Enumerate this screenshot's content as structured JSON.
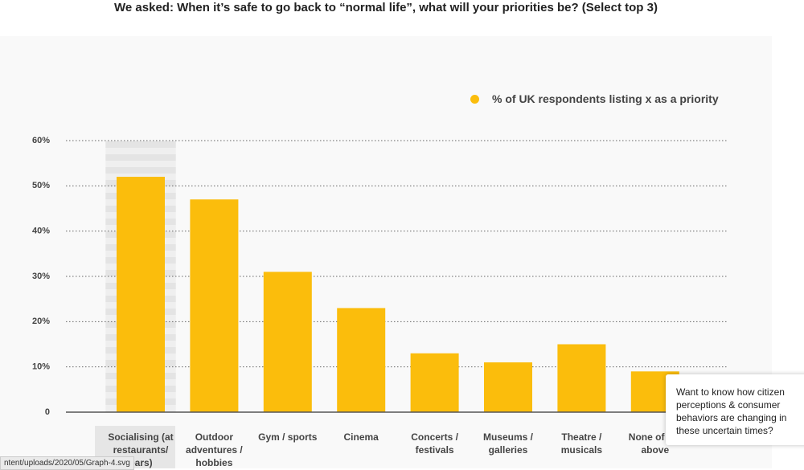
{
  "chart_data": {
    "type": "bar",
    "title": "We asked: When it’s safe to go back to “normal life”, what will your priorities be? (Select top 3)",
    "categories": [
      "Socialising (at restaurants/ bars)",
      "Outdoor adventures / hobbies",
      "Gym / sports",
      "Cinema",
      "Concerts / festivals",
      "Museums / galleries",
      "Theatre / musicals",
      "None of the above"
    ],
    "series": [
      {
        "name": "% of UK respondents listing x as a priority",
        "color": "#fbbd0c",
        "values": [
          52,
          47,
          31,
          23,
          13,
          11,
          15,
          9
        ]
      }
    ],
    "ylim": [
      0,
      60
    ],
    "yticks": [
      0,
      {
        "value": 10,
        "label": "10%"
      },
      {
        "value": 20,
        "label": "20%"
      },
      {
        "value": 30,
        "label": "30%"
      },
      {
        "value": 40,
        "label": "40%"
      },
      {
        "value": 50,
        "label": "50%"
      },
      {
        "value": 60,
        "label": "60%"
      }
    ],
    "grid": true
  },
  "popup": {
    "text": "Want to know how citizen perceptions & consumer behaviors are changing in these uncertain times?"
  },
  "status_bar": {
    "url": "ntent/uploads/2020/05/Graph-4.svg"
  }
}
